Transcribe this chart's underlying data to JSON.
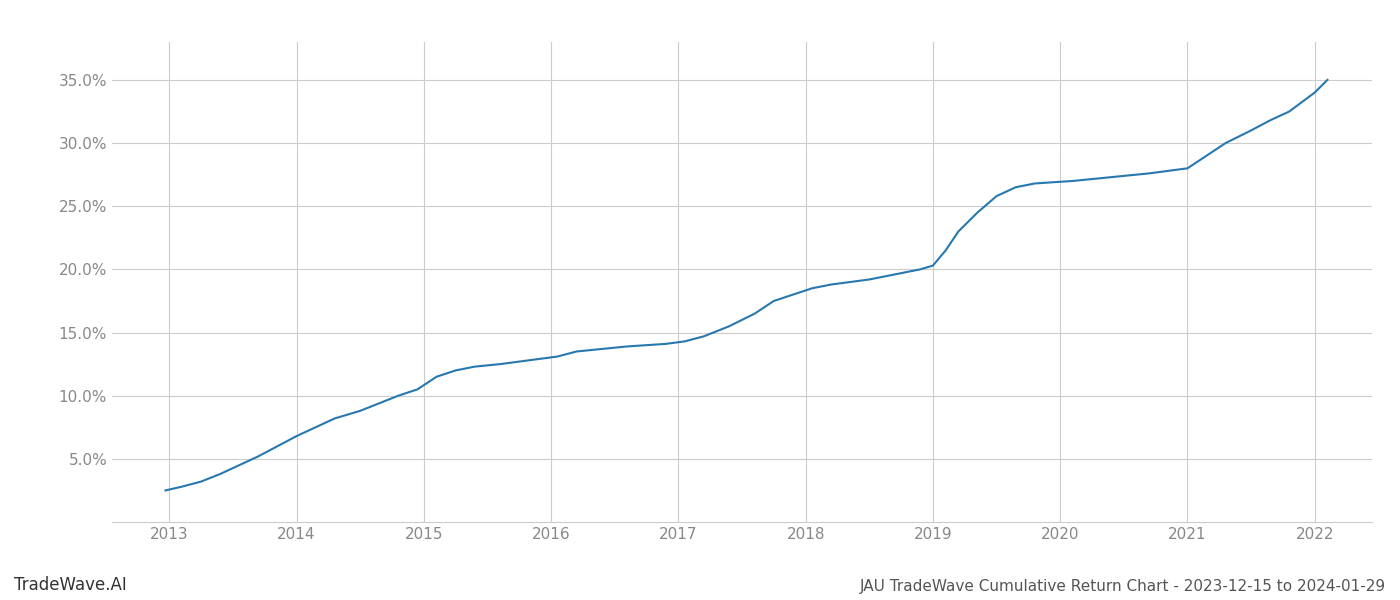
{
  "title": "JAU TradeWave Cumulative Return Chart - 2023-12-15 to 2024-01-29",
  "watermark": "TradeWave.AI",
  "line_color": "#2878b0",
  "line_width": 1.5,
  "background_color": "#ffffff",
  "grid_color": "#cccccc",
  "x_years": [
    2013,
    2014,
    2015,
    2016,
    2017,
    2018,
    2019,
    2020,
    2021,
    2022
  ],
  "x_data": [
    2012.97,
    2013.1,
    2013.25,
    2013.4,
    2013.55,
    2013.7,
    2013.85,
    2014.0,
    2014.15,
    2014.3,
    2014.5,
    2014.65,
    2014.8,
    2014.95,
    2015.1,
    2015.25,
    2015.4,
    2015.6,
    2015.75,
    2015.9,
    2016.05,
    2016.2,
    2016.4,
    2016.6,
    2016.75,
    2016.9,
    2017.05,
    2017.2,
    2017.4,
    2017.6,
    2017.75,
    2017.9,
    2018.05,
    2018.2,
    2018.35,
    2018.5,
    2018.65,
    2018.8,
    2018.9,
    2019.0,
    2019.1,
    2019.2,
    2019.35,
    2019.5,
    2019.65,
    2019.8,
    2019.95,
    2020.1,
    2020.3,
    2020.5,
    2020.7,
    2020.85,
    2021.0,
    2021.15,
    2021.3,
    2021.5,
    2021.65,
    2021.8,
    2022.0,
    2022.1
  ],
  "y_data": [
    2.5,
    2.8,
    3.2,
    3.8,
    4.5,
    5.2,
    6.0,
    6.8,
    7.5,
    8.2,
    8.8,
    9.4,
    10.0,
    10.5,
    11.5,
    12.0,
    12.3,
    12.5,
    12.7,
    12.9,
    13.1,
    13.5,
    13.7,
    13.9,
    14.0,
    14.1,
    14.3,
    14.7,
    15.5,
    16.5,
    17.5,
    18.0,
    18.5,
    18.8,
    19.0,
    19.2,
    19.5,
    19.8,
    20.0,
    20.3,
    21.5,
    23.0,
    24.5,
    25.8,
    26.5,
    26.8,
    26.9,
    27.0,
    27.2,
    27.4,
    27.6,
    27.8,
    28.0,
    29.0,
    30.0,
    31.0,
    31.8,
    32.5,
    34.0,
    35.0
  ],
  "ylim": [
    0,
    38
  ],
  "yticks": [
    5.0,
    10.0,
    15.0,
    20.0,
    25.0,
    30.0,
    35.0
  ],
  "xlim": [
    2012.55,
    2022.45
  ],
  "title_fontsize": 11,
  "tick_fontsize": 11,
  "watermark_fontsize": 12,
  "tick_color": "#888888",
  "spine_color": "#cccccc",
  "grid_linewidth": 0.8
}
